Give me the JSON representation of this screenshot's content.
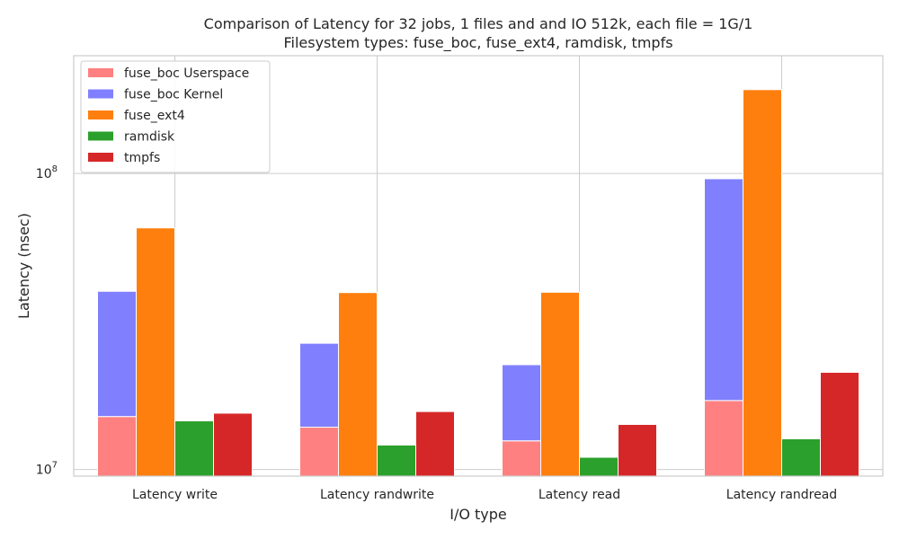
{
  "chart_data": {
    "type": "bar",
    "title_lines": [
      "Comparison of Latency for 32 jobs, 1 files and  and IO 512k, each file = 1G/1",
      "Filesystem types: fuse_boc, fuse_ext4, ramdisk, tmpfs"
    ],
    "xlabel": "I/O type",
    "ylabel": "Latency (nsec)",
    "y_scale": "log",
    "ylim": [
      9500000,
      250000000
    ],
    "y_ticks": [
      {
        "value": 10000000,
        "base": "10",
        "exp": "7"
      },
      {
        "value": 100000000,
        "base": "10",
        "exp": "8"
      }
    ],
    "categories": [
      "Latency write",
      "Latency randwrite",
      "Latency read",
      "Latency randread"
    ],
    "series": [
      {
        "name": "fuse_boc Userspace",
        "color": "#ff8080",
        "slot": 0,
        "base": null,
        "values": [
          15100000,
          13900000,
          12500000,
          17100000
        ]
      },
      {
        "name": "fuse_boc Kernel",
        "color": "#8080ff",
        "slot": 0,
        "stack_on": "fuse_boc Userspace",
        "values": [
          40000000,
          26700000,
          22600000,
          96000000
        ]
      },
      {
        "name": "fuse_ext4",
        "color": "#ff7f0e",
        "slot": 1,
        "base": null,
        "values": [
          65500000,
          39600000,
          39700000,
          192000000
        ]
      },
      {
        "name": "ramdisk",
        "color": "#2ca02c",
        "slot": 2,
        "base": null,
        "values": [
          14600000,
          12100000,
          11000000,
          12700000
        ]
      },
      {
        "name": "tmpfs",
        "color": "#d62728",
        "slot": 3,
        "base": null,
        "values": [
          15500000,
          15700000,
          14200000,
          21300000
        ]
      }
    ],
    "grid": true,
    "legend_position": "top-left"
  }
}
